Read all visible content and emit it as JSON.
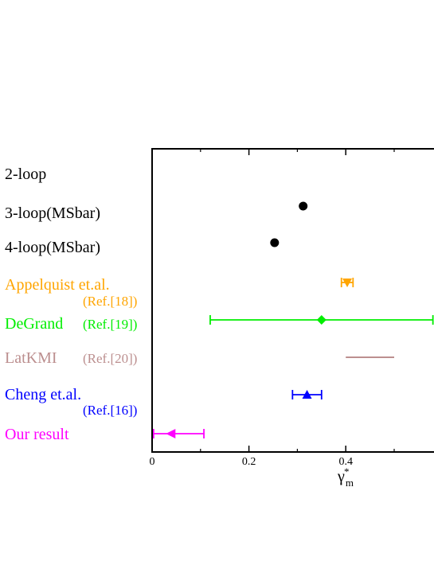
{
  "chart_data": {
    "type": "scatter",
    "title": "",
    "xlabel": "γ",
    "xlabel_sub": "m",
    "xlabel_sup": "*",
    "ylabel": "",
    "xlim": [
      0,
      0.58
    ],
    "x_ticks": [
      {
        "value": 0,
        "label": "0"
      },
      {
        "value": 0.2,
        "label": "0.2"
      },
      {
        "value": 0.4,
        "label": "0.4"
      }
    ],
    "grid": false,
    "series": [
      {
        "name": "2-loop",
        "ref": "",
        "color": "#000000",
        "marker": "none",
        "errorbar": "none"
      },
      {
        "name": "3-loop(MSbar)",
        "ref": "",
        "color": "#000000",
        "marker": "circle",
        "x": 0.312,
        "errorbar": "none"
      },
      {
        "name": "4-loop(MSbar)",
        "ref": "",
        "color": "#000000",
        "marker": "circle",
        "x": 0.253,
        "errorbar": "none"
      },
      {
        "name": "Appelquist et.al.",
        "ref": "(Ref.[18])",
        "color": "#ffa500",
        "marker": "triangle-down",
        "x": 0.403,
        "xmin": 0.391,
        "xmax": 0.415,
        "errorbar": "capped"
      },
      {
        "name": "DeGrand",
        "ref": "(Ref.[19])",
        "color": "#00ee00",
        "marker": "diamond",
        "x": 0.35,
        "xmin": 0.12,
        "xmax": 0.58,
        "errorbar": "capped"
      },
      {
        "name": "LatKMI",
        "ref": "(Ref.[20])",
        "color": "#bc8f8f",
        "marker": "none",
        "xmin": 0.4,
        "xmax": 0.5,
        "errorbar": "band"
      },
      {
        "name": "Cheng et.al.",
        "ref": "(Ref.[16])",
        "color": "#0000ff",
        "marker": "triangle-up",
        "x": 0.32,
        "xmin": 0.29,
        "xmax": 0.35,
        "errorbar": "capped"
      },
      {
        "name": "Our result",
        "ref": "",
        "color": "#ff00ff",
        "marker": "triangle-left",
        "x": 0.04,
        "xmin": 0.003,
        "xmax": 0.107,
        "errorbar": "capped"
      }
    ]
  }
}
